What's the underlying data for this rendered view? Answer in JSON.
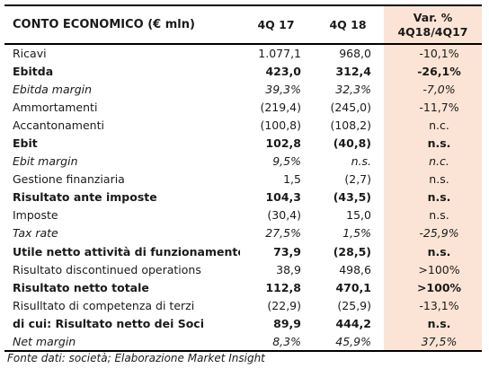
{
  "table": {
    "headers": {
      "label": "CONTO ECONOMICO (€ mln)",
      "q17": "4Q 17",
      "q18": "4Q 18",
      "var_line1": "Var. %",
      "var_line2": "4Q18/4Q17"
    },
    "rows": [
      {
        "label": "Ricavi",
        "q17": "1.077,1",
        "q18": "968,0",
        "var": "-10,1%",
        "style": "normal"
      },
      {
        "label": "Ebitda",
        "q17": "423,0",
        "q18": "312,4",
        "var": "-26,1%",
        "style": "bold"
      },
      {
        "label": "Ebitda margin",
        "q17": "39,3%",
        "q18": "32,3%",
        "var": "-7,0%",
        "style": "italic"
      },
      {
        "label": "Ammortamenti",
        "q17": "(219,4)",
        "q18": "(245,0)",
        "var": "-11,7%",
        "style": "normal"
      },
      {
        "label": "Accantonamenti",
        "q17": "(100,8)",
        "q18": "(108,2)",
        "var": "n.c.",
        "style": "normal"
      },
      {
        "label": "Ebit",
        "q17": "102,8",
        "q18": "(40,8)",
        "var": "n.s.",
        "style": "bold"
      },
      {
        "label": "Ebit margin",
        "q17": "9,5%",
        "q18": "n.s.",
        "var": "n.c.",
        "style": "italic"
      },
      {
        "label": "Gestione finanziaria",
        "q17": "1,5",
        "q18": "(2,7)",
        "var": "n.s.",
        "style": "normal"
      },
      {
        "label": "Risultato ante imposte",
        "q17": "104,3",
        "q18": "(43,5)",
        "var": "n.s.",
        "style": "bold"
      },
      {
        "label": "Imposte",
        "q17": "(30,4)",
        "q18": "15,0",
        "var": "n.s.",
        "style": "normal"
      },
      {
        "label": "Tax rate",
        "q17": "27,5%",
        "q18": "1,5%",
        "var": "-25,9%",
        "style": "italic"
      },
      {
        "label": "Utile netto attività di funzionamento",
        "q17": "73,9",
        "q18": "(28,5)",
        "var": "n.s.",
        "style": "bold"
      },
      {
        "label": "Risultato discontinued operations",
        "q17": "38,9",
        "q18": "498,6",
        "var": ">100%",
        "style": "normal"
      },
      {
        "label": "Risultato netto totale",
        "q17": "112,8",
        "q18": "470,1",
        "var": ">100%",
        "style": "bold"
      },
      {
        "label": "Risulltato di competenza di terzi",
        "q17": "(22,9)",
        "q18": "(25,9)",
        "var": "-13,1%",
        "style": "normal"
      },
      {
        "label": "di cui: Risultato netto dei Soci",
        "q17": "89,9",
        "q18": "444,2",
        "var": "n.s.",
        "style": "bold"
      },
      {
        "label": "Net margin",
        "q17": "8,3%",
        "q18": "45,9%",
        "var": "37,5%",
        "style": "italic"
      }
    ]
  },
  "footer": {
    "source": "Fonte dati: società; Elaborazione Market Insight"
  },
  "colors": {
    "var_column_bg": "#fbe4d5",
    "rule": "#000000"
  }
}
